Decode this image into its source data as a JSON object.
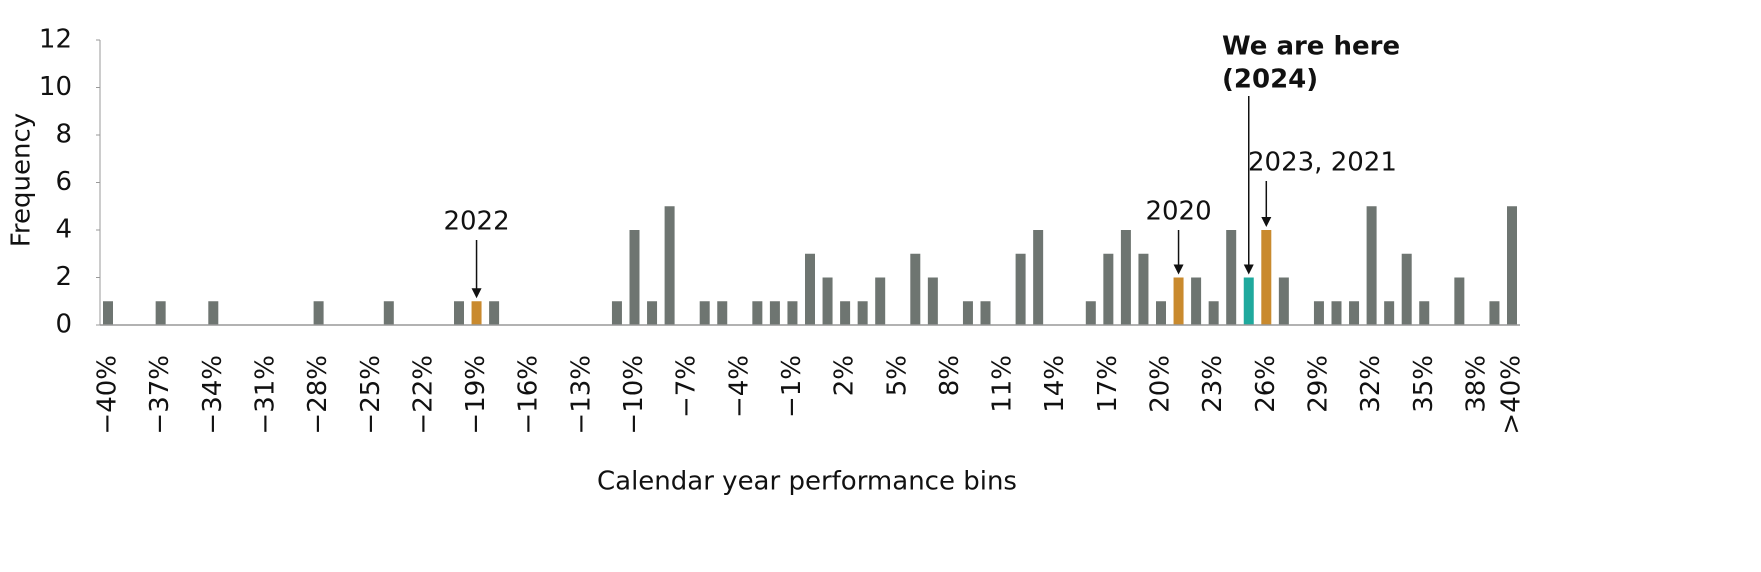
{
  "chart_data": {
    "type": "bar",
    "xlabel": "Calendar year performance bins",
    "ylabel": "Frequency",
    "categories": [
      "−40%",
      null,
      null,
      "−37%",
      null,
      null,
      "−34%",
      null,
      null,
      "−31%",
      null,
      null,
      "−28%",
      null,
      null,
      "−25%",
      null,
      null,
      "−22%",
      null,
      null,
      "−19%",
      null,
      null,
      "−16%",
      null,
      null,
      "−13%",
      null,
      null,
      "−10%",
      null,
      null,
      "−7%",
      null,
      null,
      "−4%",
      null,
      null,
      "−1%",
      null,
      null,
      "2%",
      null,
      null,
      "5%",
      null,
      null,
      "8%",
      null,
      null,
      "11%",
      null,
      null,
      "14%",
      null,
      null,
      "17%",
      null,
      null,
      "20%",
      null,
      null,
      "23%",
      null,
      null,
      "26%",
      null,
      null,
      "29%",
      null,
      null,
      "32%",
      null,
      null,
      "35%",
      null,
      null,
      "38%",
      null,
      ">40%"
    ],
    "values": [
      1,
      0,
      0,
      1,
      0,
      0,
      1,
      0,
      0,
      0,
      0,
      0,
      1,
      0,
      0,
      0,
      1,
      0,
      0,
      0,
      1,
      1,
      1,
      0,
      0,
      0,
      0,
      0,
      0,
      1,
      4,
      1,
      5,
      0,
      1,
      1,
      0,
      1,
      1,
      1,
      3,
      2,
      1,
      1,
      2,
      0,
      3,
      2,
      0,
      1,
      1,
      0,
      3,
      4,
      0,
      0,
      1,
      3,
      4,
      3,
      1,
      2,
      2,
      1,
      4,
      2,
      4,
      2,
      0,
      1,
      1,
      1,
      5,
      1,
      3,
      1,
      0,
      2,
      0,
      1,
      5
    ],
    "colors": [
      "#6e7571",
      "#6e7571",
      "#6e7571",
      "#6e7571",
      "#6e7571",
      "#6e7571",
      "#6e7571",
      "#6e7571",
      "#6e7571",
      "#6e7571",
      "#6e7571",
      "#6e7571",
      "#6e7571",
      "#6e7571",
      "#6e7571",
      "#6e7571",
      "#6e7571",
      "#6e7571",
      "#6e7571",
      "#6e7571",
      "#6e7571",
      "#c98a2e",
      "#6e7571",
      "#6e7571",
      "#6e7571",
      "#6e7571",
      "#6e7571",
      "#6e7571",
      "#6e7571",
      "#6e7571",
      "#6e7571",
      "#6e7571",
      "#6e7571",
      "#6e7571",
      "#6e7571",
      "#6e7571",
      "#6e7571",
      "#6e7571",
      "#6e7571",
      "#6e7571",
      "#6e7571",
      "#6e7571",
      "#6e7571",
      "#6e7571",
      "#6e7571",
      "#6e7571",
      "#6e7571",
      "#6e7571",
      "#6e7571",
      "#6e7571",
      "#6e7571",
      "#6e7571",
      "#6e7571",
      "#6e7571",
      "#6e7571",
      "#6e7571",
      "#6e7571",
      "#6e7571",
      "#6e7571",
      "#6e7571",
      "#6e7571",
      "#c98a2e",
      "#6e7571",
      "#6e7571",
      "#6e7571",
      "#1fa99d",
      "#c98a2e",
      "#6e7571",
      "#6e7571",
      "#6e7571",
      "#6e7571",
      "#6e7571",
      "#6e7571",
      "#6e7571",
      "#6e7571",
      "#6e7571",
      "#6e7571",
      "#6e7571",
      "#6e7571",
      "#6e7571",
      "#6e7571"
    ],
    "ylim": [
      0,
      12
    ],
    "yticks": [
      0,
      2,
      4,
      6,
      8,
      10,
      12
    ],
    "grid": false,
    "annotations": [
      {
        "text": "2022"
      },
      {
        "text": "2020"
      },
      {
        "text": [
          "We are here",
          "(2024)"
        ],
        "bold": true
      },
      {
        "text": "2023, 2021"
      }
    ]
  }
}
